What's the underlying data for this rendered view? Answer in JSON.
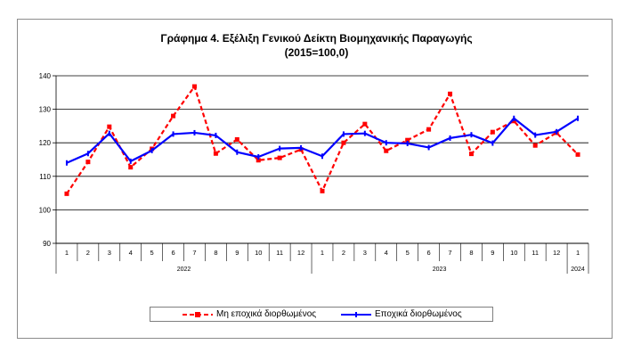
{
  "chart_data": {
    "type": "line",
    "title": "Γράφημα 4. Εξέλιξη Γενικού Δείκτη Βιομηχανικής Παραγωγής",
    "subtitle": "(2015=100,0)",
    "ylim": [
      90,
      140
    ],
    "yticks": [
      90,
      100,
      110,
      120,
      130,
      140
    ],
    "grid": true,
    "legend_position": "bottom",
    "categories": [
      "1",
      "2",
      "3",
      "4",
      "5",
      "6",
      "7",
      "8",
      "9",
      "10",
      "11",
      "12",
      "1",
      "2",
      "3",
      "4",
      "5",
      "6",
      "7",
      "8",
      "9",
      "10",
      "11",
      "12",
      "1"
    ],
    "year_groups": [
      {
        "label": "2022",
        "count": 12
      },
      {
        "label": "2023",
        "count": 12
      },
      {
        "label": "2024",
        "count": 1
      }
    ],
    "series": [
      {
        "name": "Μη εποχικά διορθωμένος",
        "color": "#ff0000",
        "style": "dashed",
        "marker": "square",
        "values": [
          104.8,
          114.3,
          124.8,
          112.7,
          118.2,
          128.0,
          136.8,
          116.8,
          121.0,
          114.8,
          115.5,
          118.0,
          105.6,
          120.0,
          125.6,
          117.6,
          120.8,
          124.0,
          134.6,
          116.7,
          123.2,
          126.5,
          119.2,
          123.0,
          116.5
        ]
      },
      {
        "name": "Εποχικά διορθωμένος",
        "color": "#0000ff",
        "style": "solid",
        "marker": "dash",
        "values": [
          114.0,
          116.8,
          122.8,
          114.5,
          117.7,
          122.6,
          123.0,
          122.2,
          117.2,
          115.8,
          118.3,
          118.5,
          116.0,
          122.6,
          122.8,
          120.0,
          119.8,
          118.6,
          121.4,
          122.4,
          119.9,
          127.3,
          122.3,
          123.3,
          127.3
        ]
      }
    ]
  }
}
